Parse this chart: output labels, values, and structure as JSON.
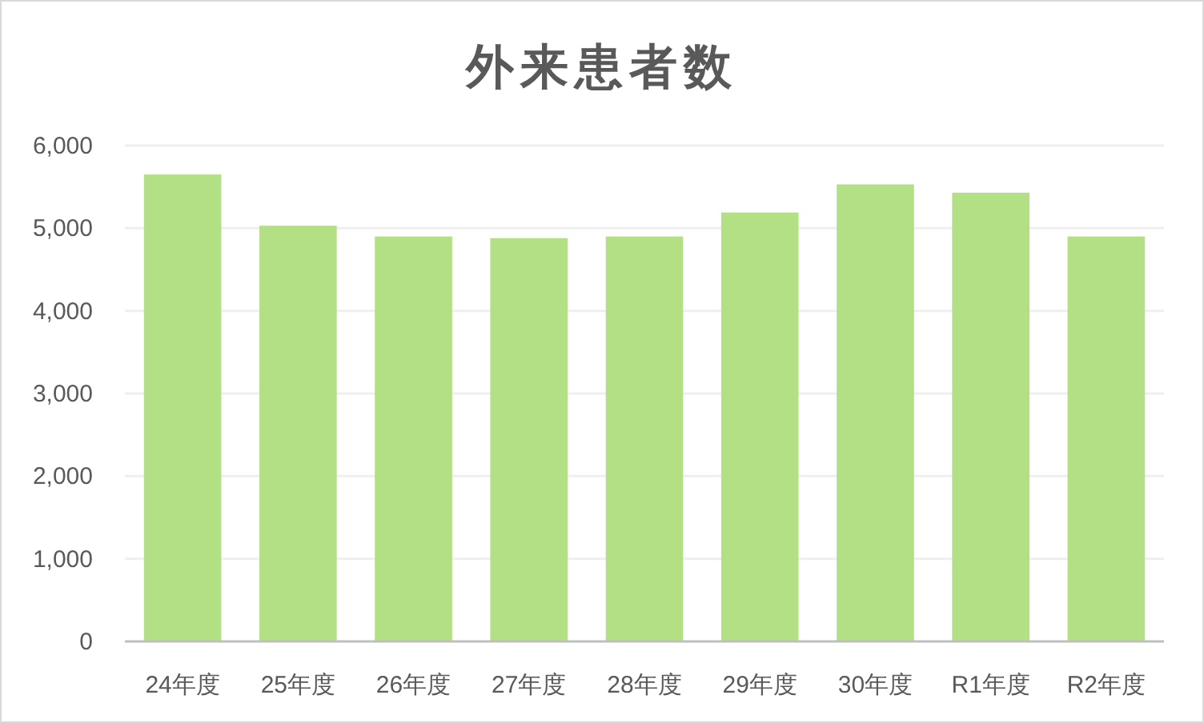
{
  "chart_data": {
    "type": "bar",
    "title": "外来患者数",
    "categories": [
      "24年度",
      "25年度",
      "26年度",
      "27年度",
      "28年度",
      "29年度",
      "30年度",
      "R1年度",
      "R2年度"
    ],
    "values": [
      5650,
      5030,
      4900,
      4880,
      4900,
      5190,
      5530,
      5430,
      4900
    ],
    "color": "#b3df85",
    "ylim": [
      0,
      6000
    ],
    "yticks": [
      {
        "value": 0,
        "label": "0"
      },
      {
        "value": 1000,
        "label": "1,000"
      },
      {
        "value": 2000,
        "label": "2,000"
      },
      {
        "value": 3000,
        "label": "3,000"
      },
      {
        "value": 4000,
        "label": "4,000"
      },
      {
        "value": 5000,
        "label": "5,000"
      },
      {
        "value": 6000,
        "label": "6,000"
      }
    ],
    "grid": "y"
  }
}
